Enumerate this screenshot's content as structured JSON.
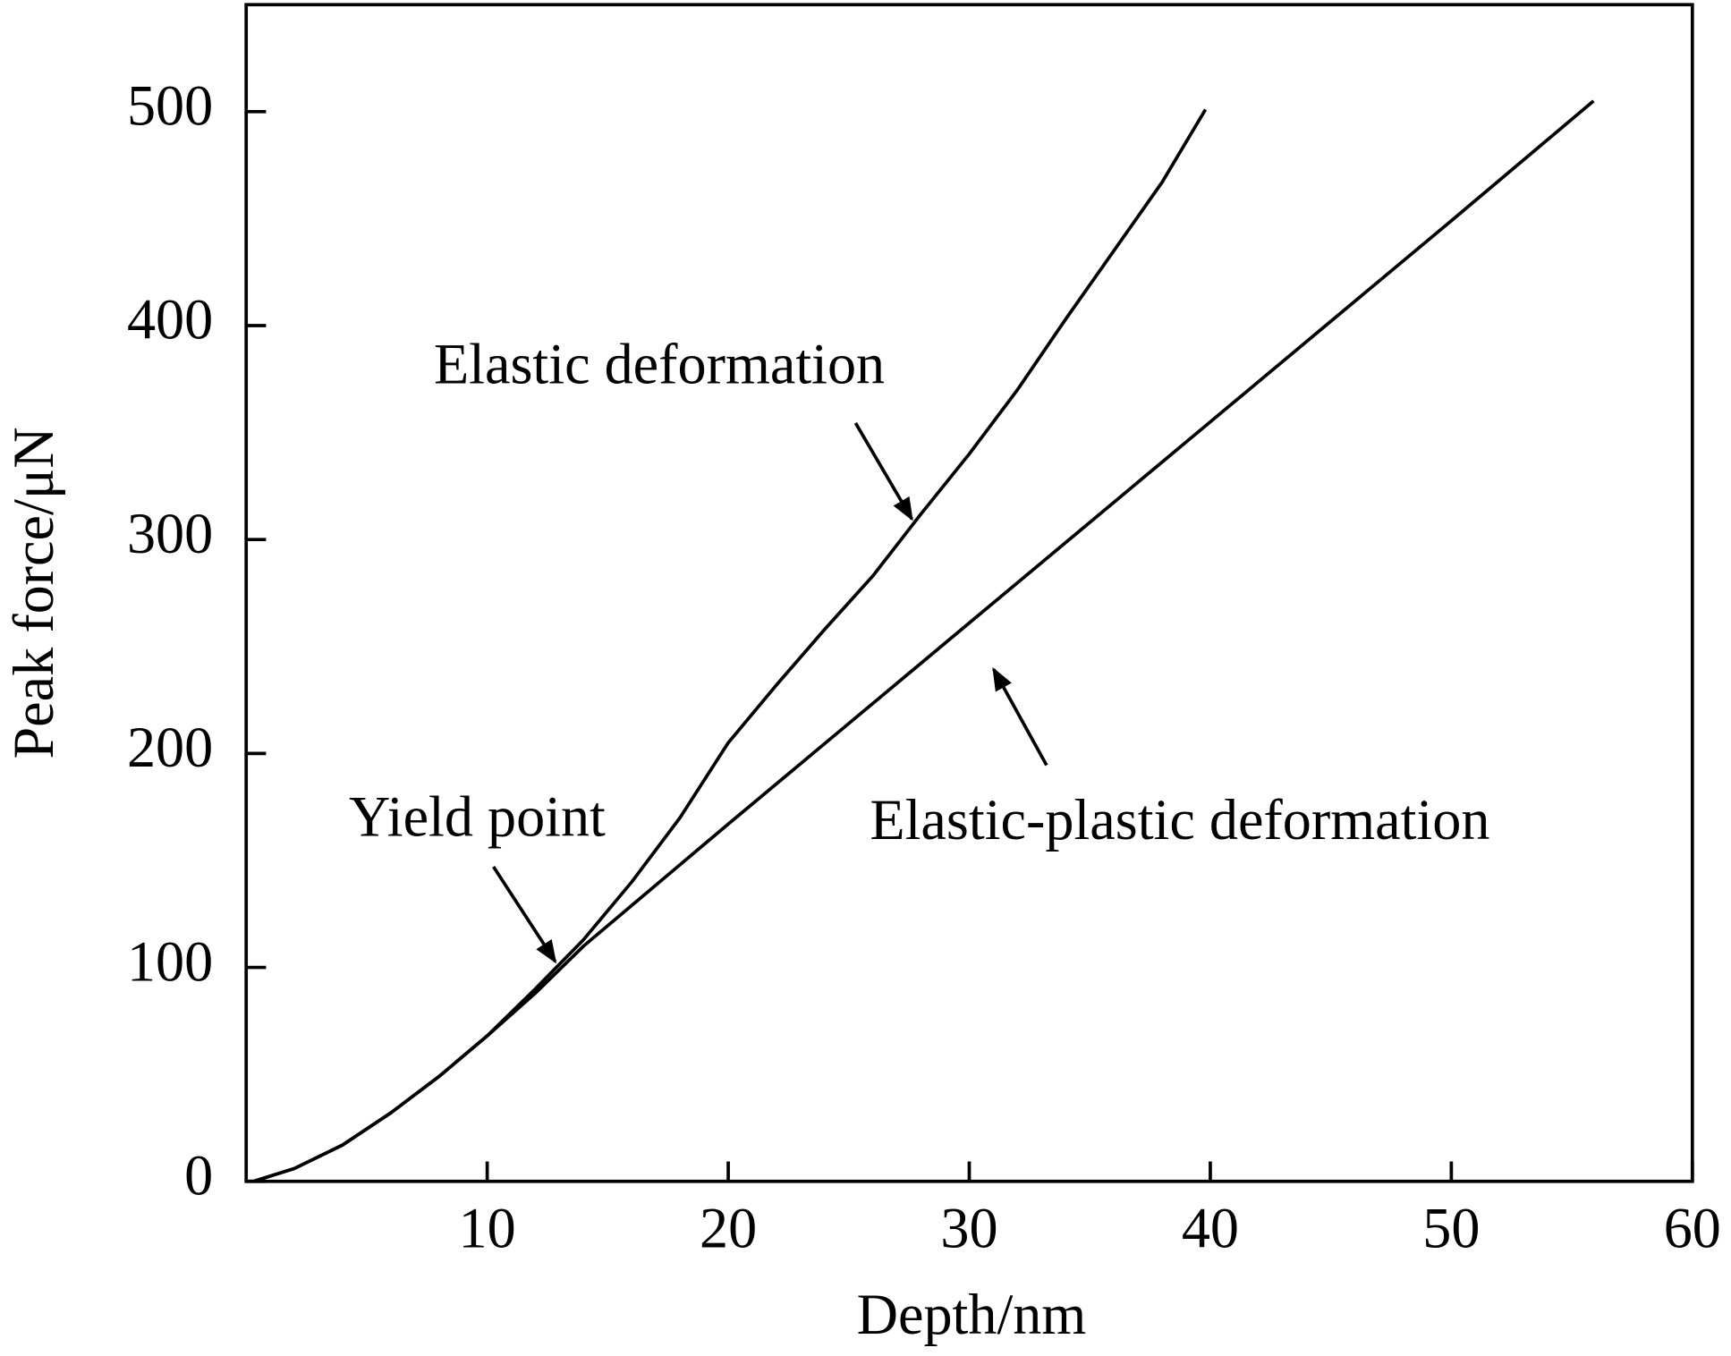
{
  "chart_data": {
    "type": "line",
    "x_label": "Depth/nm",
    "y_label": "Peak force/μN",
    "annotations": [
      "Elastic deformation",
      "Yield point",
      "Elastic-plastic deformation"
    ],
    "series": [
      {
        "color": "#000000",
        "x": [
          0.3,
          2,
          4,
          6,
          8,
          10,
          12,
          14,
          16,
          18,
          20,
          22,
          24,
          26,
          28,
          30,
          32,
          34,
          36,
          38,
          39.8
        ],
        "values": [
          0,
          6,
          17,
          32,
          49,
          68,
          90,
          113,
          140,
          170,
          205,
          232,
          258,
          283,
          312,
          340,
          370,
          403,
          435,
          467,
          501
        ]
      },
      {
        "color": "#000000",
        "x": [
          0.3,
          2,
          4,
          6,
          8,
          10,
          12,
          14,
          16,
          18,
          20,
          25,
          30,
          35,
          40,
          45,
          50,
          55.9
        ],
        "values": [
          0,
          6,
          17,
          32,
          49,
          68,
          88,
          110,
          129,
          148,
          167,
          214,
          261,
          308,
          355,
          402,
          449,
          505
        ]
      }
    ],
    "xlim": [
      0,
      60
    ],
    "ylim": [
      0,
      550
    ],
    "xticks": [
      10,
      20,
      30,
      40,
      50,
      60
    ],
    "yticks": [
      0,
      100,
      200,
      300,
      400,
      500
    ]
  }
}
